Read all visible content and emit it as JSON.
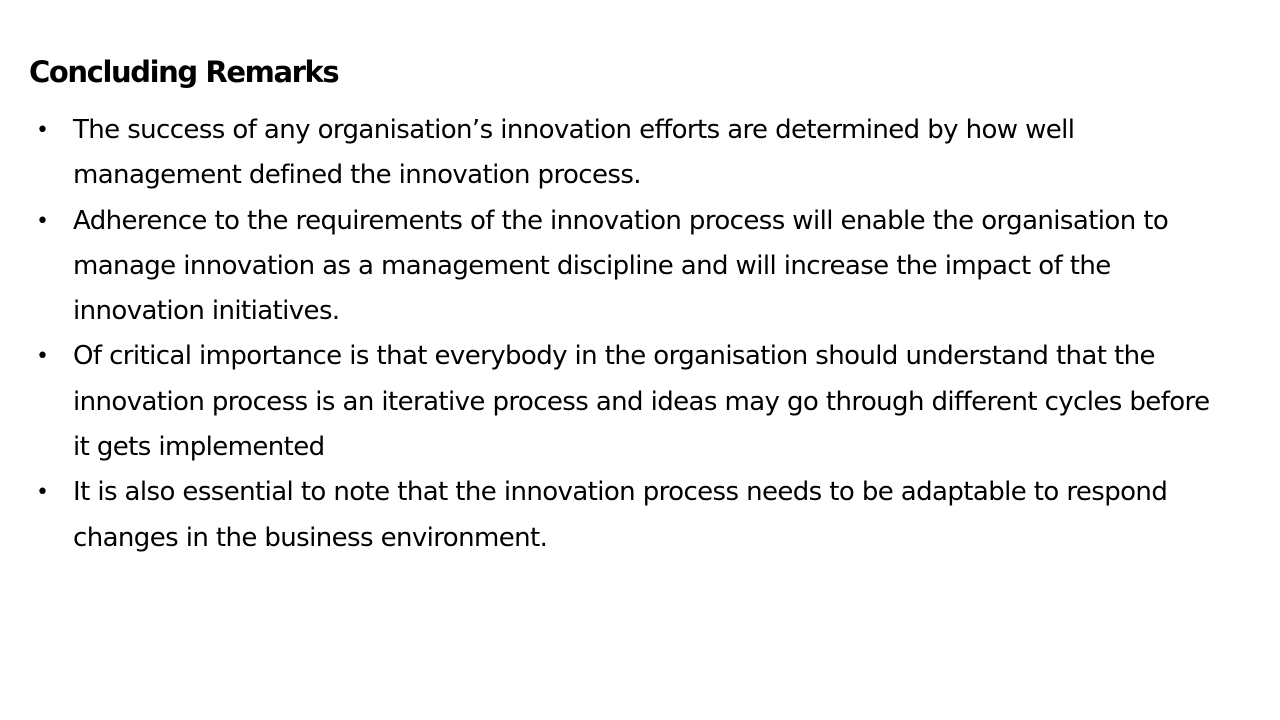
{
  "slide": {
    "title": "Concluding Remarks",
    "bullet_icon": "bullet-dot-icon",
    "bullets": [
      "The success of any organisation’s innovation efforts are determined by how well management defined the innovation process.",
      "Adherence to the requirements of the innovation process will enable the organisation to manage innovation as a management discipline and will increase the impact of the innovation initiatives.",
      "Of critical importance is that everybody in the organisation should understand that the innovation process is an iterative process and ideas may go through different cycles before it gets implemented",
      "It is also essential to note that the innovation process needs to be adaptable to respond changes in the business environment."
    ]
  }
}
